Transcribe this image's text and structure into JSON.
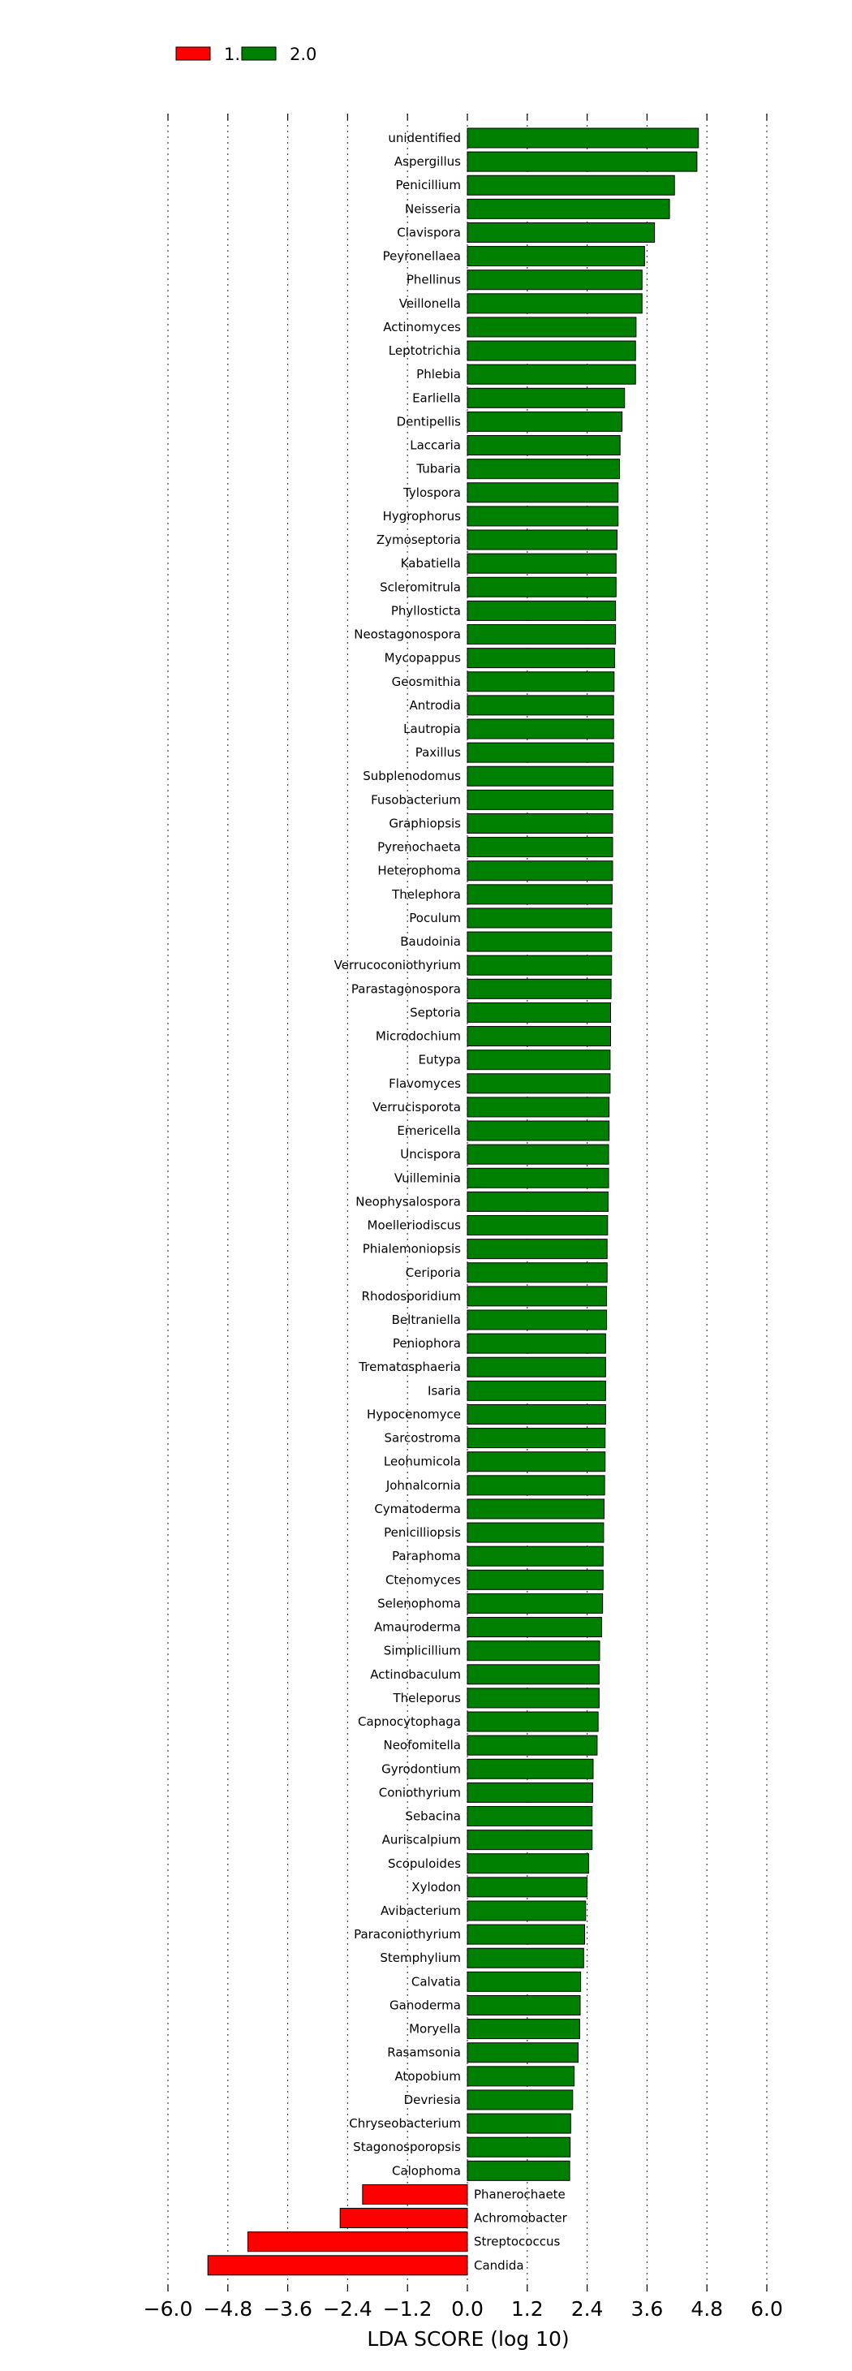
{
  "chart_data": {
    "type": "bar",
    "orientation": "horizontal",
    "xlabel": "LDA SCORE (log 10)",
    "ylabel": "",
    "xlim": [
      -6.0,
      6.0
    ],
    "xticks": [
      -6.0,
      -4.8,
      -3.6,
      -2.4,
      -1.2,
      0.0,
      1.2,
      2.4,
      3.6,
      4.8,
      6.0
    ],
    "xtick_labels": [
      "−6.0",
      "−4.8",
      "−3.6",
      "−2.4",
      "−1.2",
      "0.0",
      "1.2",
      "2.4",
      "3.6",
      "4.8",
      "6.0"
    ],
    "grid": "vertical dotted",
    "legend_position": "top-left",
    "legend": [
      {
        "label": "1.0",
        "color": "#ff0000"
      },
      {
        "label": "2.0",
        "color": "#008000"
      }
    ],
    "series": [
      {
        "name": "1.0",
        "color": "#ff0000"
      },
      {
        "name": "2.0",
        "color": "#008000"
      }
    ],
    "categories": [
      "unidentified",
      "Aspergillus",
      "Penicillium",
      "Neisseria",
      "Clavispora",
      "Peyronellaea",
      "Phellinus",
      "Veillonella",
      "Actinomyces",
      "Leptotrichia",
      "Phlebia",
      "Earliella",
      "Dentipellis",
      "Laccaria",
      "Tubaria",
      "Tylospora",
      "Hygrophorus",
      "Zymoseptoria",
      "Kabatiella",
      "Scleromitrula",
      "Phyllosticta",
      "Neostagonospora",
      "Mycopappus",
      "Geosmithia",
      "Antrodia",
      "Lautropia",
      "Paxillus",
      "Subplenodomus",
      "Fusobacterium",
      "Graphiopsis",
      "Pyrenochaeta",
      "Heterophoma",
      "Thelephora",
      "Poculum",
      "Baudoinia",
      "Verrucoconiothyrium",
      "Parastagonospora",
      "Septoria",
      "Microdochium",
      "Eutypa",
      "Flavomyces",
      "Verrucisporota",
      "Emericella",
      "Uncispora",
      "Vuilleminia",
      "Neophysalospora",
      "Moelleriodiscus",
      "Phialemoniopsis",
      "Ceriporia",
      "Rhodosporidium",
      "Beltraniella",
      "Peniophora",
      "Trematosphaeria",
      "Isaria",
      "Hypocenomyce",
      "Sarcostroma",
      "Leohumicola",
      "Johnalcornia",
      "Cymatoderma",
      "Penicilliopsis",
      "Paraphoma",
      "Ctenomyces",
      "Selenophoma",
      "Amauroderma",
      "Simplicillium",
      "Actinobaculum",
      "Theleporus",
      "Capnocytophaga",
      "Neofomitella",
      "Gyrodontium",
      "Coniothyrium",
      "Sebacina",
      "Auriscalpium",
      "Scopuloides",
      "Xylodon",
      "Avibacterium",
      "Paraconiothyrium",
      "Stemphylium",
      "Calvatia",
      "Ganoderma",
      "Moryella",
      "Rasamsonia",
      "Atopobium",
      "Devriesia",
      "Chryseobacterium",
      "Stagonosporopsis",
      "Calophoma",
      "Phanerochaete",
      "Achromobacter",
      "Streptococcus",
      "Candida"
    ],
    "values": [
      4.63,
      4.6,
      4.15,
      4.05,
      3.75,
      3.55,
      3.5,
      3.5,
      3.38,
      3.37,
      3.37,
      3.15,
      3.1,
      3.06,
      3.05,
      3.02,
      3.02,
      3.0,
      2.98,
      2.98,
      2.97,
      2.97,
      2.95,
      2.94,
      2.93,
      2.93,
      2.93,
      2.92,
      2.92,
      2.91,
      2.91,
      2.91,
      2.9,
      2.89,
      2.89,
      2.89,
      2.88,
      2.87,
      2.87,
      2.86,
      2.86,
      2.84,
      2.84,
      2.83,
      2.83,
      2.82,
      2.81,
      2.8,
      2.8,
      2.79,
      2.79,
      2.77,
      2.77,
      2.77,
      2.77,
      2.76,
      2.76,
      2.75,
      2.74,
      2.73,
      2.72,
      2.72,
      2.71,
      2.69,
      2.65,
      2.64,
      2.64,
      2.62,
      2.6,
      2.52,
      2.51,
      2.5,
      2.5,
      2.43,
      2.4,
      2.37,
      2.35,
      2.33,
      2.27,
      2.26,
      2.25,
      2.22,
      2.14,
      2.11,
      2.07,
      2.06,
      2.05,
      -2.1,
      -2.55,
      -4.4,
      -5.2
    ],
    "classes": [
      "2.0",
      "2.0",
      "2.0",
      "2.0",
      "2.0",
      "2.0",
      "2.0",
      "2.0",
      "2.0",
      "2.0",
      "2.0",
      "2.0",
      "2.0",
      "2.0",
      "2.0",
      "2.0",
      "2.0",
      "2.0",
      "2.0",
      "2.0",
      "2.0",
      "2.0",
      "2.0",
      "2.0",
      "2.0",
      "2.0",
      "2.0",
      "2.0",
      "2.0",
      "2.0",
      "2.0",
      "2.0",
      "2.0",
      "2.0",
      "2.0",
      "2.0",
      "2.0",
      "2.0",
      "2.0",
      "2.0",
      "2.0",
      "2.0",
      "2.0",
      "2.0",
      "2.0",
      "2.0",
      "2.0",
      "2.0",
      "2.0",
      "2.0",
      "2.0",
      "2.0",
      "2.0",
      "2.0",
      "2.0",
      "2.0",
      "2.0",
      "2.0",
      "2.0",
      "2.0",
      "2.0",
      "2.0",
      "2.0",
      "2.0",
      "2.0",
      "2.0",
      "2.0",
      "2.0",
      "2.0",
      "2.0",
      "2.0",
      "2.0",
      "2.0",
      "2.0",
      "2.0",
      "2.0",
      "2.0",
      "2.0",
      "2.0",
      "2.0",
      "2.0",
      "2.0",
      "2.0",
      "2.0",
      "2.0",
      "2.0",
      "2.0",
      "1.0",
      "1.0",
      "1.0",
      "1.0"
    ]
  }
}
